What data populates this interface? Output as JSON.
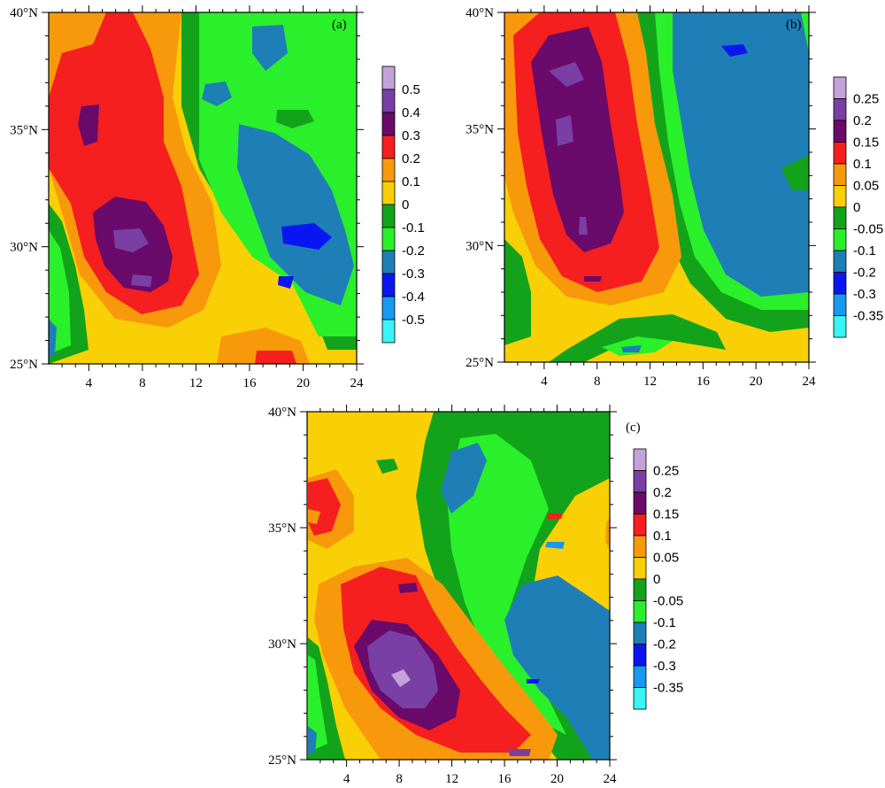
{
  "chart_data": [
    {
      "type": "heatmap",
      "panel_label": "(a)",
      "x_ticks": [
        "4",
        "8",
        "12",
        "16",
        "20",
        "24"
      ],
      "y_ticks": [
        "25°N",
        "30°N",
        "35°N",
        "40°N"
      ],
      "xlim": [
        1,
        24
      ],
      "ylim": [
        25,
        40
      ],
      "colorbar_labels": [
        "0.5",
        "0.4",
        "0.3",
        "0.2",
        "0.1",
        "0",
        "-0.1",
        "-0.2",
        "-0.3",
        "-0.4",
        "-0.5"
      ],
      "colorbar_colors": [
        "#c3a2d9",
        "#7a3fa5",
        "#6a0a6a",
        "#f51f1f",
        "#f7990b",
        "#f9cf05",
        "#12a31a",
        "#29f02a",
        "#1e7fb6",
        "#0a16f2",
        "#1898ef",
        "#39f4f4"
      ],
      "dominant_features": [
        {
          "region": "west-center",
          "x": 8,
          "y": 30,
          "value": 0.4
        },
        {
          "region": "east",
          "x": 20,
          "y": 31,
          "value": -0.3
        }
      ]
    },
    {
      "type": "heatmap",
      "panel_label": "(b)",
      "x_ticks": [
        "4",
        "8",
        "12",
        "16",
        "20",
        "24"
      ],
      "y_ticks": [
        "25°N",
        "30°N",
        "35°N",
        "40°N"
      ],
      "xlim": [
        1,
        24
      ],
      "ylim": [
        25,
        40
      ],
      "colorbar_labels": [
        "0.25",
        "0.2",
        "0.15",
        "0.1",
        "0.05",
        "0",
        "-0.05",
        "-0.1",
        "-0.2",
        "-0.3",
        "-0.35"
      ],
      "colorbar_colors": [
        "#c3a2d9",
        "#7a3fa5",
        "#6a0a6a",
        "#f51f1f",
        "#f7990b",
        "#f9cf05",
        "#12a31a",
        "#29f02a",
        "#1e7fb6",
        "#0a16f2",
        "#1898ef",
        "#39f4f4"
      ],
      "dominant_features": [
        {
          "region": "west",
          "x": 6,
          "y": 35,
          "value": 0.2
        },
        {
          "region": "east",
          "x": 18,
          "y": 32,
          "value": -0.2
        }
      ]
    },
    {
      "type": "heatmap",
      "panel_label": "(c)",
      "x_ticks": [
        "4",
        "8",
        "12",
        "16",
        "20",
        "24"
      ],
      "y_ticks": [
        "25°N",
        "30°N",
        "35°N",
        "40°N"
      ],
      "xlim": [
        1,
        24
      ],
      "ylim": [
        25,
        40
      ],
      "colorbar_labels": [
        "0.25",
        "0.2",
        "0.15",
        "0.1",
        "0.05",
        "0",
        "-0.05",
        "-0.1",
        "-0.2",
        "-0.3",
        "-0.35"
      ],
      "colorbar_colors": [
        "#c3a2d9",
        "#7a3fa5",
        "#6a0a6a",
        "#f51f1f",
        "#f7990b",
        "#f9cf05",
        "#12a31a",
        "#29f02a",
        "#1e7fb6",
        "#0a16f2",
        "#1898ef",
        "#39f4f4"
      ],
      "dominant_features": [
        {
          "region": "south-west",
          "x": 8,
          "y": 29,
          "value": 0.25
        },
        {
          "region": "south-east",
          "x": 20,
          "y": 29,
          "value": -0.2
        }
      ]
    }
  ]
}
